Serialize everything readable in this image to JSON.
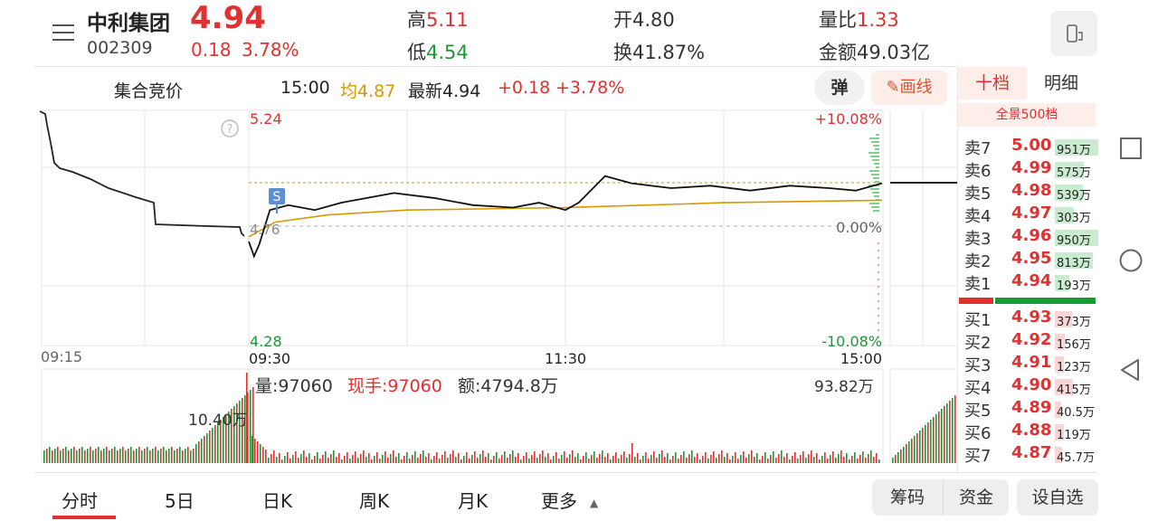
{
  "stock": {
    "name": "中利集团",
    "code": "002309",
    "price": "4.94",
    "change": "0.18",
    "change_pct": "3.78%"
  },
  "stats": {
    "high_label": "高",
    "high": "5.11",
    "low_label": "低",
    "low": "4.54",
    "open_label": "开",
    "open": "4.80",
    "turnover_label": "换",
    "turnover": "41.87%",
    "vol_ratio_label": "量比",
    "vol_ratio": "1.33",
    "amount_label": "金额",
    "amount": "49.03亿"
  },
  "infobar": {
    "auction": "集合竞价",
    "time": "15:00",
    "avg": "均4.87",
    "latest": "最新4.94",
    "chg": "+0.18",
    "chg_pct": "+3.78%",
    "dan": "弹",
    "draw": "画线"
  },
  "chart_data": {
    "type": "line",
    "title": "",
    "y_price_max": "5.24",
    "y_price_min": "4.28",
    "y_pct_max": "+10.08%",
    "y_pct_mid": "0.00%",
    "y_pct_min": "-10.08%",
    "ref_price_label": "4.76",
    "prev_close": 4.76,
    "ylim": [
      4.28,
      5.24
    ],
    "time_labels": [
      "09:15",
      "09:30",
      "11:30",
      "15:00"
    ],
    "price_series": [
      {
        "t": "09:30",
        "p": 4.7
      },
      {
        "t": "09:32",
        "p": 4.64
      },
      {
        "t": "09:34",
        "p": 4.69
      },
      {
        "t": "09:38",
        "p": 4.83
      },
      {
        "t": "09:45",
        "p": 4.85
      },
      {
        "t": "09:55",
        "p": 4.83
      },
      {
        "t": "10:05",
        "p": 4.86
      },
      {
        "t": "10:15",
        "p": 4.88
      },
      {
        "t": "10:25",
        "p": 4.9
      },
      {
        "t": "10:40",
        "p": 4.88
      },
      {
        "t": "10:55",
        "p": 4.85
      },
      {
        "t": "11:10",
        "p": 4.84
      },
      {
        "t": "11:20",
        "p": 4.86
      },
      {
        "t": "11:30",
        "p": 4.83
      },
      {
        "t": "13:05",
        "p": 4.86
      },
      {
        "t": "13:15",
        "p": 4.97
      },
      {
        "t": "13:25",
        "p": 4.94
      },
      {
        "t": "13:40",
        "p": 4.92
      },
      {
        "t": "13:55",
        "p": 4.93
      },
      {
        "t": "14:10",
        "p": 4.91
      },
      {
        "t": "14:25",
        "p": 4.93
      },
      {
        "t": "14:40",
        "p": 4.92
      },
      {
        "t": "14:50",
        "p": 4.91
      },
      {
        "t": "15:00",
        "p": 4.94
      }
    ],
    "avg_series": [
      {
        "t": "09:30",
        "p": 4.72
      },
      {
        "t": "09:40",
        "p": 4.78
      },
      {
        "t": "10:00",
        "p": 4.81
      },
      {
        "t": "10:30",
        "p": 4.83
      },
      {
        "t": "11:30",
        "p": 4.84
      },
      {
        "t": "13:30",
        "p": 4.85
      },
      {
        "t": "14:00",
        "p": 4.86
      },
      {
        "t": "15:00",
        "p": 4.87
      }
    ],
    "volume": {
      "label": "量:97060",
      "hand": "现手:97060",
      "amount": "额:4794.8万",
      "max_label": "93.82万",
      "auction_label": "10.40万"
    }
  },
  "orderbook": {
    "tabs": [
      "十档",
      "明细"
    ],
    "full": "全景500档",
    "asks": [
      {
        "label": "卖7",
        "price": "5.00",
        "vol": "951万"
      },
      {
        "label": "卖6",
        "price": "4.99",
        "vol": "575万"
      },
      {
        "label": "卖5",
        "price": "4.98",
        "vol": "539万"
      },
      {
        "label": "卖4",
        "price": "4.97",
        "vol": "303万"
      },
      {
        "label": "卖3",
        "price": "4.96",
        "vol": "950万"
      },
      {
        "label": "卖2",
        "price": "4.95",
        "vol": "813万"
      },
      {
        "label": "卖1",
        "price": "4.94",
        "vol": "193万"
      }
    ],
    "bids": [
      {
        "label": "买1",
        "price": "4.93",
        "vol": "373万"
      },
      {
        "label": "买2",
        "price": "4.92",
        "vol": "156万"
      },
      {
        "label": "买3",
        "price": "4.91",
        "vol": "123万"
      },
      {
        "label": "买4",
        "price": "4.90",
        "vol": "415万"
      },
      {
        "label": "买5",
        "price": "4.89",
        "vol": "40.5万"
      },
      {
        "label": "买6",
        "price": "4.88",
        "vol": "119万"
      },
      {
        "label": "买7",
        "price": "4.87",
        "vol": "45.7万"
      }
    ]
  },
  "tabs": [
    "分时",
    "5日",
    "日K",
    "周K",
    "月K",
    "更多"
  ],
  "bottom": {
    "chips": "筹码",
    "funds": "资金",
    "watch": "设自选"
  },
  "colors": {
    "up": "#e0302f",
    "down": "#1a9a35",
    "avg": "#d69a00",
    "price": "#111111"
  }
}
